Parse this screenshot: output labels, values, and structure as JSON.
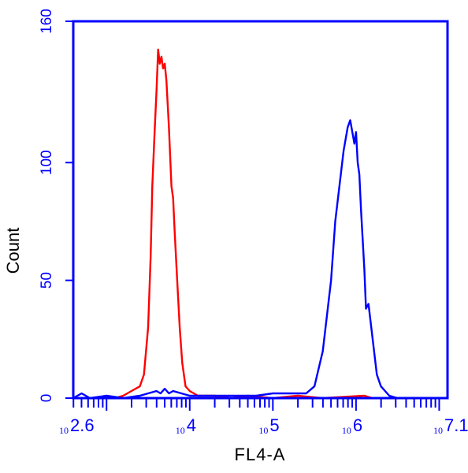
{
  "chart_data": {
    "type": "line",
    "xlabel": "FL4-A",
    "ylabel": "Count",
    "xscale": "log10",
    "xlim": [
      398,
      12590000
    ],
    "ylim": [
      0,
      160
    ],
    "grid": false,
    "axis_color": "#0000ff",
    "yticks": [
      {
        "value": 0,
        "label": "0"
      },
      {
        "value": 50,
        "label": "50"
      },
      {
        "value": 100,
        "label": "100"
      },
      {
        "value": 160,
        "label": "160"
      }
    ],
    "xticks": [
      {
        "value": 398,
        "base": "10",
        "exp": "2.6"
      },
      {
        "value": 10000,
        "base": "10",
        "exp": "4"
      },
      {
        "value": 100000,
        "base": "10",
        "exp": "5"
      },
      {
        "value": 1000000,
        "base": "10",
        "exp": "6"
      },
      {
        "value": 12590000,
        "base": "10",
        "exp": "7.1"
      }
    ],
    "series": [
      {
        "color": "#ff0000",
        "points": [
          [
            398,
            0
          ],
          [
            794,
            0
          ],
          [
            1000,
            1
          ],
          [
            1259,
            0
          ],
          [
            1585,
            1
          ],
          [
            1995,
            3
          ],
          [
            2512,
            5
          ],
          [
            2818,
            10
          ],
          [
            3162,
            30
          ],
          [
            3388,
            60
          ],
          [
            3548,
            90
          ],
          [
            3802,
            115
          ],
          [
            3981,
            130
          ],
          [
            4169,
            148
          ],
          [
            4365,
            142
          ],
          [
            4571,
            145
          ],
          [
            4786,
            140
          ],
          [
            5012,
            142
          ],
          [
            5248,
            135
          ],
          [
            5623,
            115
          ],
          [
            6026,
            90
          ],
          [
            6310,
            85
          ],
          [
            6607,
            70
          ],
          [
            7079,
            50
          ],
          [
            7586,
            30
          ],
          [
            8128,
            15
          ],
          [
            8913,
            5
          ],
          [
            10000,
            3
          ],
          [
            12590,
            1
          ],
          [
            19950,
            1
          ],
          [
            31620,
            0
          ],
          [
            50120,
            1
          ],
          [
            100000,
            0
          ],
          [
            200000,
            1
          ],
          [
            398100,
            0
          ],
          [
            1259000,
            1
          ],
          [
            1585000,
            0
          ],
          [
            12590000,
            0
          ]
        ]
      },
      {
        "color": "#0000ff",
        "points": [
          [
            398,
            0
          ],
          [
            501,
            2
          ],
          [
            631,
            0
          ],
          [
            1000,
            1
          ],
          [
            1585,
            0
          ],
          [
            2512,
            1
          ],
          [
            3162,
            2
          ],
          [
            3981,
            3
          ],
          [
            4467,
            2
          ],
          [
            5012,
            4
          ],
          [
            5623,
            2
          ],
          [
            6310,
            3
          ],
          [
            7943,
            2
          ],
          [
            10000,
            1
          ],
          [
            19950,
            1
          ],
          [
            39810,
            1
          ],
          [
            63100,
            1
          ],
          [
            100000,
            2
          ],
          [
            158500,
            2
          ],
          [
            251200,
            2
          ],
          [
            316200,
            5
          ],
          [
            398100,
            20
          ],
          [
            501200,
            50
          ],
          [
            562300,
            75
          ],
          [
            631000,
            90
          ],
          [
            707900,
            105
          ],
          [
            794300,
            115
          ],
          [
            851100,
            118
          ],
          [
            912000,
            112
          ],
          [
            954900,
            108
          ],
          [
            1000000,
            113
          ],
          [
            1047000,
            100
          ],
          [
            1096000,
            95
          ],
          [
            1148000,
            80
          ],
          [
            1259000,
            55
          ],
          [
            1318000,
            38
          ],
          [
            1413000,
            40
          ],
          [
            1585000,
            25
          ],
          [
            1778000,
            10
          ],
          [
            1995000,
            5
          ],
          [
            2512000,
            1
          ],
          [
            3162000,
            0
          ],
          [
            12590000,
            0
          ]
        ]
      }
    ]
  }
}
